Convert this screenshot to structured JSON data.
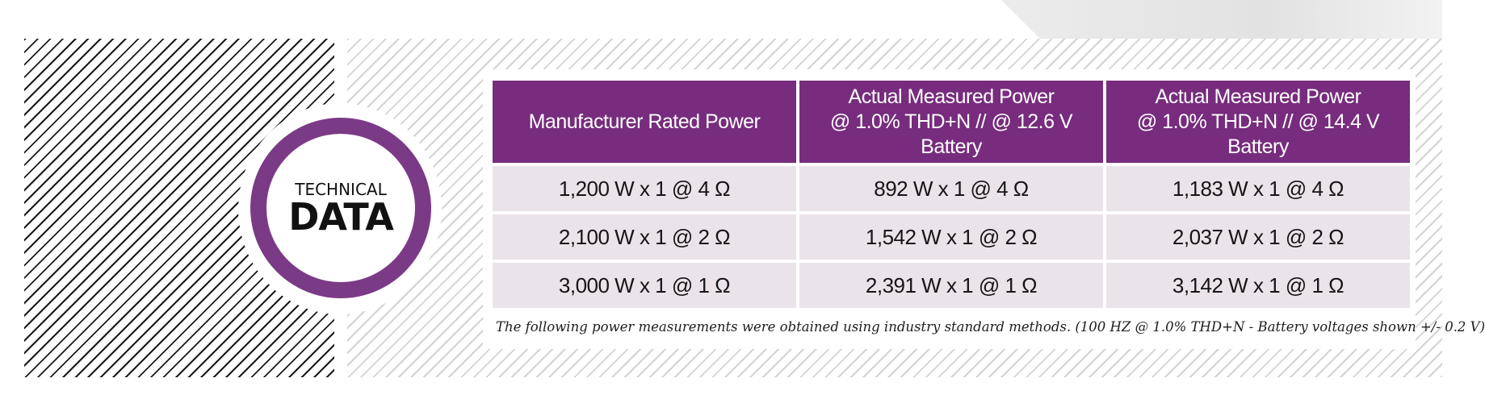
{
  "badge": {
    "top_text": "TECHNICAL",
    "main_text": "DATA",
    "ring_color": "#7b3a86"
  },
  "table": {
    "header_color": "#772c7d",
    "row_color": "#ebe3ea",
    "headers": [
      {
        "lines": [
          "Manufacturer Rated Power"
        ]
      },
      {
        "lines": [
          "Actual Measured Power",
          "@ 1.0% THD+N // @ 12.6 V Battery"
        ]
      },
      {
        "lines": [
          "Actual Measured Power",
          "@ 1.0% THD+N //  @ 14.4 V Battery"
        ]
      }
    ],
    "rows": [
      [
        "1,200 W x 1 @ 4 Ω",
        "892 W x 1 @ 4 Ω",
        "1,183 W x 1 @ 4 Ω"
      ],
      [
        "2,100 W x 1 @ 2 Ω",
        "1,542 W x 1 @ 2 Ω",
        "2,037 W x 1 @ 2 Ω"
      ],
      [
        "3,000 W x 1 @ 1 Ω",
        "2,391 W x 1 @ 1 Ω",
        "3,142 W x 1 @ 1 Ω"
      ]
    ]
  },
  "footnote": "The following power measurements were obtained using industry standard methods. (100 HZ @ 1.0% THD+N - Battery voltages shown +/- 0.2 V)"
}
